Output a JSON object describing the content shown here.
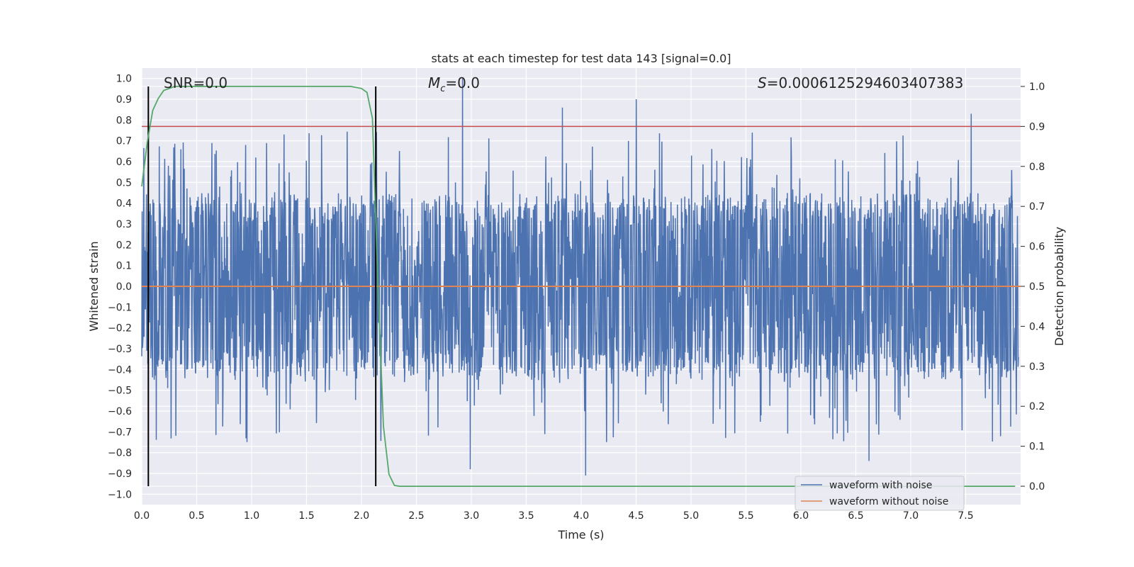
{
  "chart_data": {
    "type": "line",
    "title": "stats at each timestep for test data 143 [signal=0.0]",
    "xlabel": "Time (s)",
    "ylabel": "Whitened strain",
    "y2label": "Detection probability",
    "xlim": [
      0.0,
      8.0
    ],
    "ylim": [
      -1.05,
      1.05
    ],
    "y2lim": [
      -0.046,
      1.046
    ],
    "grid": true,
    "x_ticks": [
      "0.0",
      "0.5",
      "1.0",
      "1.5",
      "2.0",
      "2.5",
      "3.0",
      "3.5",
      "4.0",
      "4.5",
      "5.0",
      "5.5",
      "6.0",
      "6.5",
      "7.0",
      "7.5"
    ],
    "y_ticks": [
      "1.0",
      "0.9",
      "0.8",
      "0.7",
      "0.6",
      "0.5",
      "0.4",
      "0.3",
      "0.2",
      "0.1",
      "0.0",
      "−0.1",
      "−0.2",
      "−0.3",
      "−0.4",
      "−0.5",
      "−0.6",
      "−0.7",
      "−0.8",
      "−0.9",
      "−1.0"
    ],
    "y2_ticks": [
      "1.0",
      "0.9",
      "0.8",
      "0.7",
      "0.6",
      "0.5",
      "0.4",
      "0.3",
      "0.2",
      "0.1",
      "0.0"
    ],
    "annotations": {
      "snr": "SNR=0.0",
      "mc_symbol": "M",
      "mc_subscript": "c",
      "mc_value": "=0.0",
      "s_symbol": "S",
      "s_value": "=0.000612529460340738​3"
    },
    "legend": {
      "position": "lower-right",
      "entries": [
        "waveform with noise",
        "waveform without noise"
      ]
    },
    "series": [
      {
        "name": "waveform with noise",
        "color": "#4c72b0",
        "description_envelope": {
          "typical_abs_max": 0.42,
          "peaks": [
            {
              "x": 2.92,
              "y": 1.0
            },
            {
              "x": 4.5,
              "y": 0.9
            },
            {
              "x": 3.83,
              "y": 0.86
            },
            {
              "x": 7.55,
              "y": 0.83
            },
            {
              "x": 4.04,
              "y": -0.91
            },
            {
              "x": 2.99,
              "y": -0.88
            },
            {
              "x": 6.62,
              "y": -0.84
            }
          ]
        }
      },
      {
        "name": "waveform without noise",
        "color": "#dd8452",
        "x": [
          0.0,
          8.0
        ],
        "y": [
          0.0,
          0.0
        ]
      },
      {
        "name": "detection probability",
        "color": "#55a868",
        "axis": "right",
        "x": [
          0.0,
          0.05,
          0.1,
          0.15,
          0.2,
          0.25,
          0.3,
          0.4,
          0.5,
          1.0,
          1.5,
          1.9,
          2.0,
          2.05,
          2.1,
          2.15,
          2.2,
          2.25,
          2.3,
          2.35,
          3.0,
          5.0,
          7.95
        ],
        "y": [
          0.75,
          0.86,
          0.94,
          0.97,
          0.99,
          0.995,
          1.0,
          1.0,
          1.0,
          1.0,
          1.0,
          1.0,
          0.995,
          0.985,
          0.92,
          0.5,
          0.15,
          0.03,
          0.002,
          0.0,
          0.0,
          0.0,
          0.0
        ]
      }
    ],
    "vlines": [
      {
        "x": 0.06,
        "color": "#000000"
      },
      {
        "x": 2.13,
        "color": "#000000"
      }
    ],
    "threshold": {
      "y2": 0.9,
      "color": "#c44e52"
    }
  }
}
